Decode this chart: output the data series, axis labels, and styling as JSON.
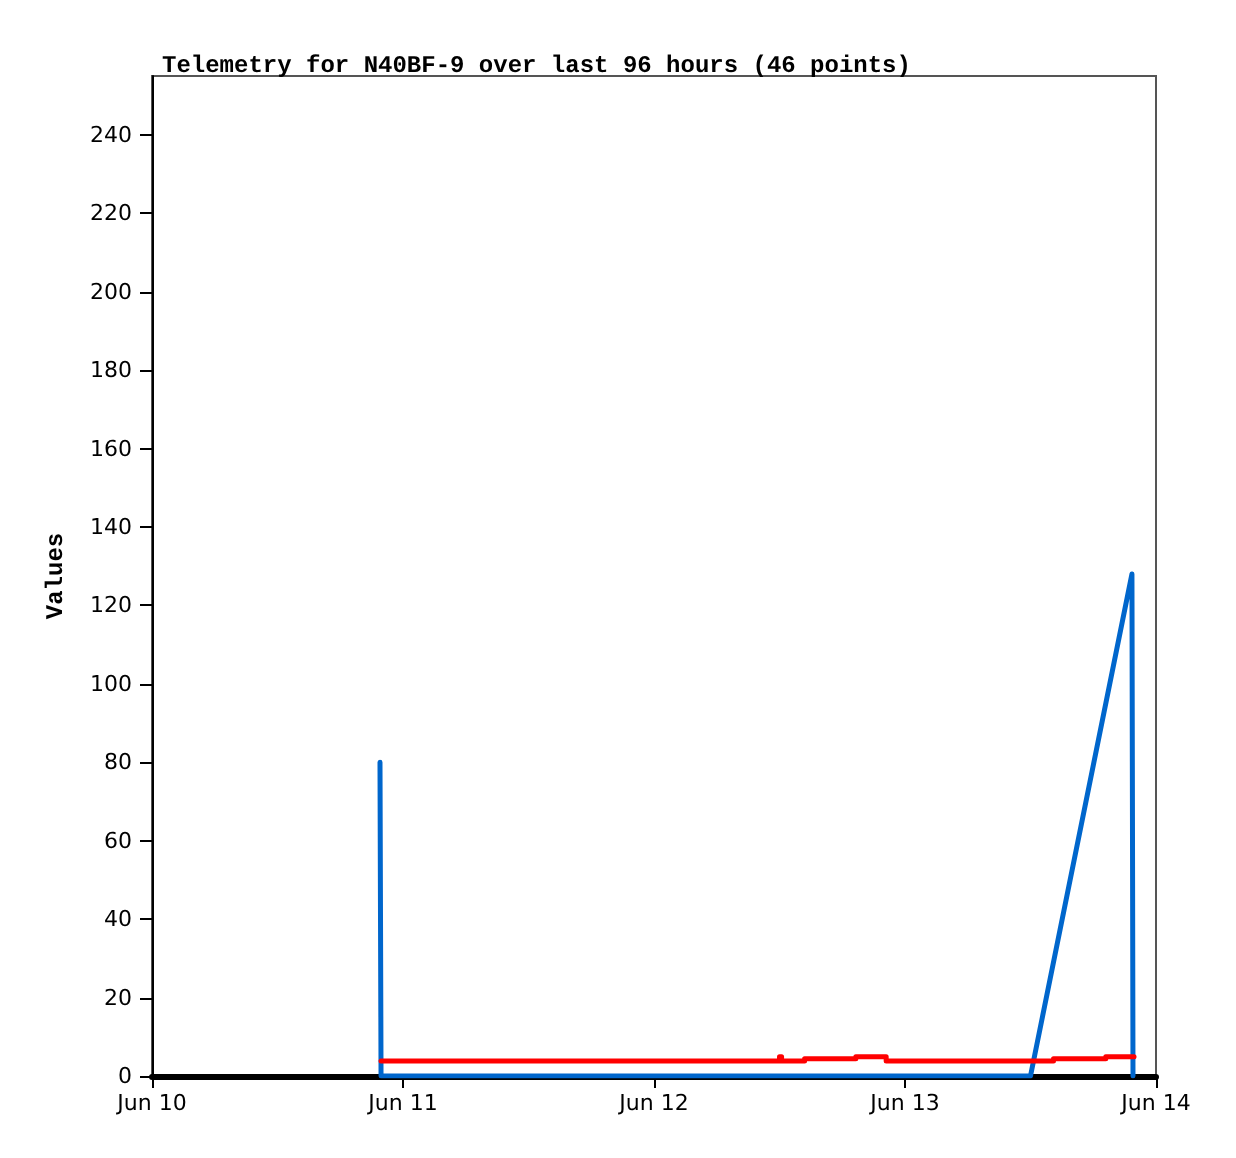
{
  "chart_data": {
    "type": "line",
    "title": "Telemetry for N40BF-9 over last 96 hours (46 points)",
    "ylabel": "Values",
    "xlim": [
      "--06-10",
      "--06-14"
    ],
    "xticks": [
      {
        "value": "--06-10",
        "label": "Jun 10"
      },
      {
        "value": "--06-11",
        "label": "Jun 11"
      },
      {
        "value": "--06-12",
        "label": "Jun 12"
      },
      {
        "value": "--06-13",
        "label": "Jun 13"
      },
      {
        "value": "--06-14",
        "label": "Jun 14"
      }
    ],
    "ylim": [
      0,
      255
    ],
    "yticks": [
      0,
      20,
      40,
      60,
      80,
      100,
      120,
      140,
      160,
      180,
      200,
      220,
      240
    ],
    "grid": false,
    "marker": "none",
    "line_style": "solid",
    "series": [
      {
        "color": "#0066cc",
        "x": [
          "--06-10T21:48",
          "--06-10T21:54",
          "--06-13T12:00",
          "--06-13T21:42",
          "--06-13T21:48"
        ],
        "values": [
          80,
          0,
          0,
          128,
          0
        ]
      },
      {
        "type": "step",
        "color": "#ff0000",
        "x": [
          "--06-10T21:54",
          "--06-12T12:00",
          "--06-12T12:12",
          "--06-12T14:24",
          "--06-12T19:18",
          "--06-12T22:12",
          "--06-13T14:12",
          "--06-13T19:12",
          "--06-13T21:54"
        ],
        "values": [
          3.8,
          4.9,
          3.8,
          4.4,
          4.9,
          3.8,
          4.4,
          4.9,
          4.9
        ]
      }
    ]
  }
}
